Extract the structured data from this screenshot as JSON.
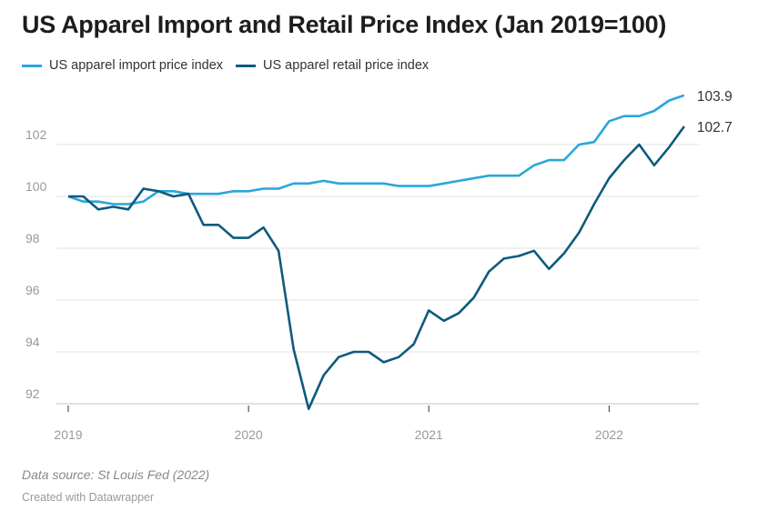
{
  "chart_data": {
    "type": "line",
    "title": "US Apparel Import and Retail Price Index (Jan 2019=100)",
    "x_start": "2019-01",
    "x_frequency": "monthly",
    "x_ticks": [
      "2019",
      "2020",
      "2021",
      "2022"
    ],
    "y_ticks": [
      92,
      94,
      96,
      98,
      100,
      102
    ],
    "ylim": [
      92,
      104
    ],
    "grid": true,
    "legend": "top-left",
    "series": [
      {
        "name": "US apparel import price index",
        "color": "#2aa6d9",
        "end_label": "103.9",
        "values": [
          100,
          99.8,
          99.8,
          99.7,
          99.7,
          99.8,
          100.2,
          100.2,
          100.1,
          100.1,
          100.1,
          100.2,
          100.2,
          100.3,
          100.3,
          100.5,
          100.5,
          100.6,
          100.5,
          100.5,
          100.5,
          100.5,
          100.4,
          100.4,
          100.4,
          100.5,
          100.6,
          100.7,
          100.8,
          100.8,
          100.8,
          101.2,
          101.4,
          101.4,
          102.0,
          102.1,
          102.9,
          103.1,
          103.1,
          103.3,
          103.7,
          103.9
        ]
      },
      {
        "name": "US apparel retail price index",
        "color": "#0f5a7d",
        "end_label": "102.7",
        "values": [
          100,
          100,
          99.5,
          99.6,
          99.5,
          100.3,
          100.2,
          100.0,
          100.1,
          98.9,
          98.9,
          98.4,
          98.4,
          98.8,
          97.9,
          94.1,
          91.8,
          93.1,
          93.8,
          94.0,
          94.0,
          93.6,
          93.8,
          94.3,
          95.6,
          95.2,
          95.5,
          96.1,
          97.1,
          97.6,
          97.7,
          97.9,
          97.2,
          97.8,
          98.6,
          99.7,
          100.7,
          101.4,
          102.0,
          101.2,
          101.9,
          102.7
        ]
      }
    ]
  },
  "footer": {
    "source": "Data source: St Louis Fed (2022)",
    "credit": "Created with Datawrapper"
  }
}
